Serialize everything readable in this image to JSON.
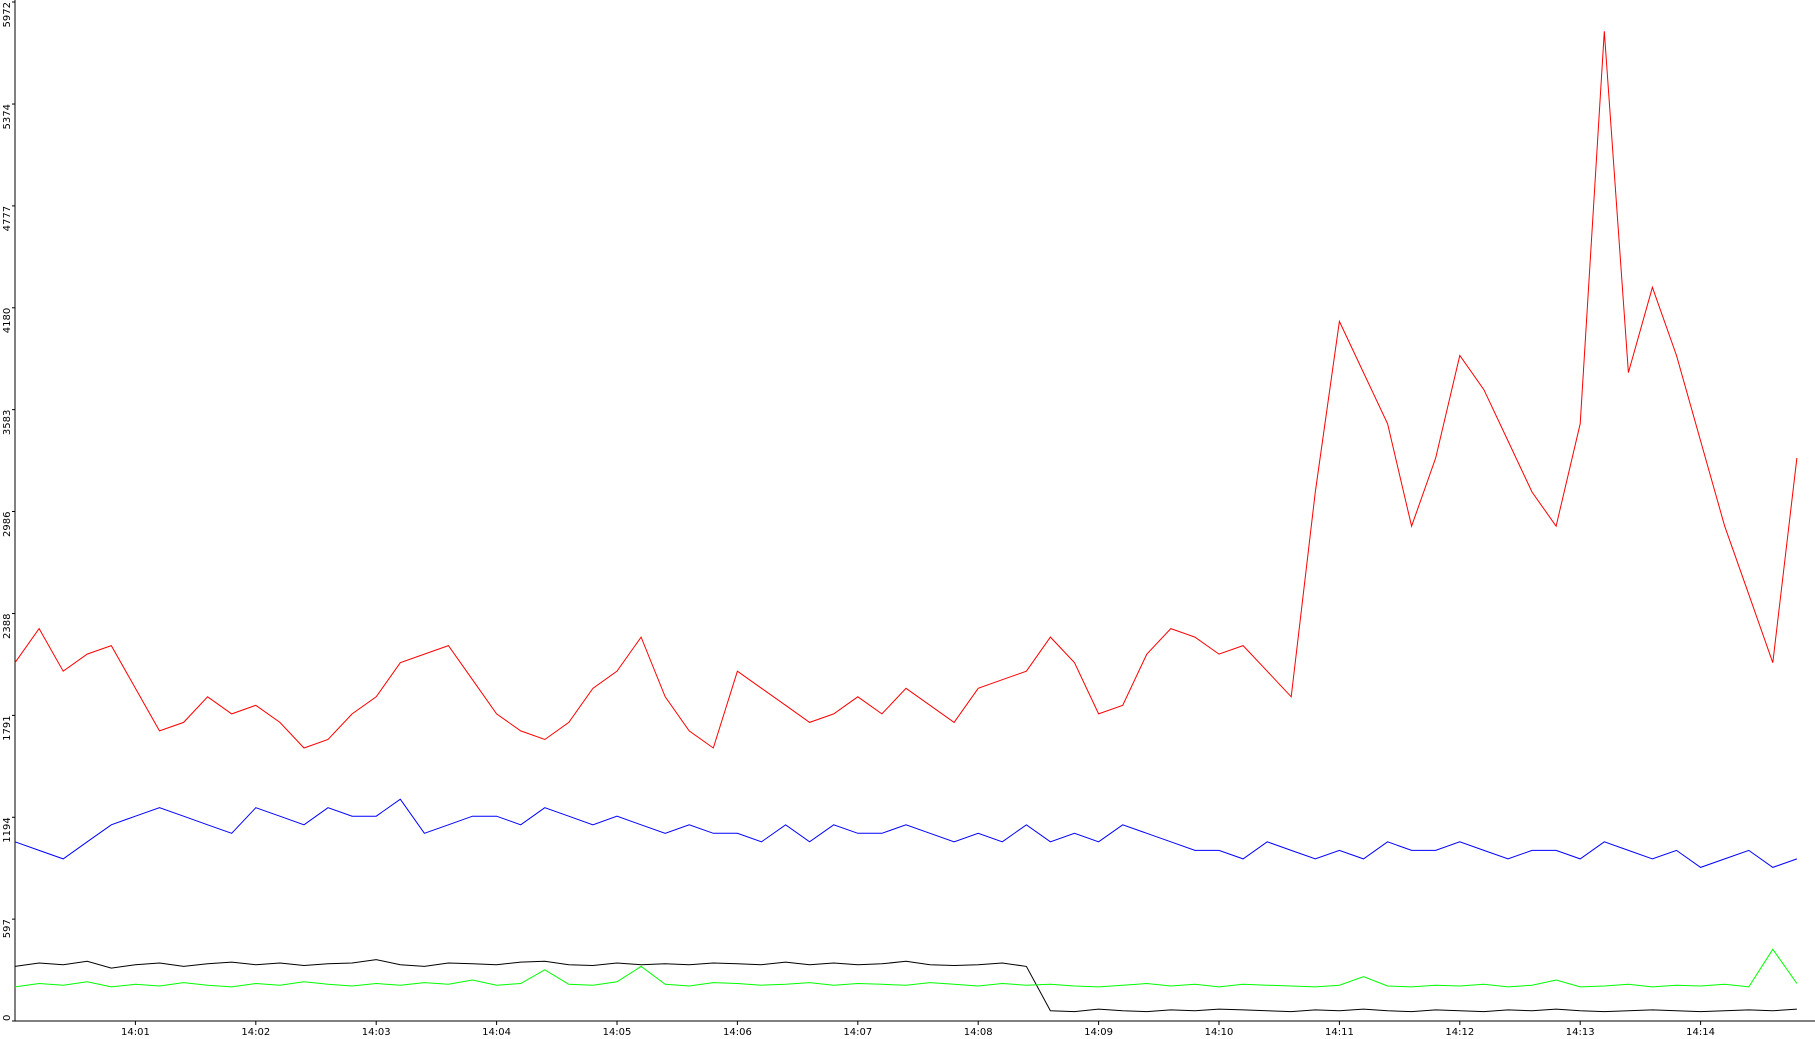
{
  "chart_data": {
    "type": "line",
    "categories": [
      null,
      null,
      null,
      null,
      null,
      "14:01",
      null,
      null,
      null,
      null,
      "14:02",
      null,
      null,
      null,
      null,
      "14:03",
      null,
      null,
      null,
      null,
      "14:04",
      null,
      null,
      null,
      null,
      "14:05",
      null,
      null,
      null,
      null,
      "14:06",
      null,
      null,
      null,
      null,
      "14:07",
      null,
      null,
      null,
      null,
      "14:08",
      null,
      null,
      null,
      null,
      "14:09",
      null,
      null,
      null,
      null,
      "14:10",
      null,
      null,
      null,
      null,
      "14:11",
      null,
      null,
      null,
      null,
      "14:12",
      null,
      null,
      null,
      null,
      "14:13",
      null,
      null,
      null,
      null,
      "14:14",
      null,
      null,
      null,
      null
    ],
    "ylim": [
      0,
      5972
    ],
    "yticks": [
      0,
      597,
      1194,
      1791,
      2388,
      2986,
      3583,
      4180,
      4777,
      5374,
      5972
    ],
    "series": [
      {
        "color": "#ff0000",
        "values": [
          2100,
          2300,
          2050,
          2150,
          2200,
          1950,
          1700,
          1750,
          1900,
          1800,
          1850,
          1750,
          1600,
          1650,
          1800,
          1900,
          2100,
          2150,
          2200,
          2000,
          1800,
          1700,
          1650,
          1750,
          1950,
          2050,
          2250,
          1900,
          1700,
          1600,
          2050,
          1950,
          1850,
          1750,
          1800,
          1900,
          1800,
          1950,
          1850,
          1750,
          1950,
          2000,
          2050,
          2250,
          2100,
          1800,
          1850,
          2150,
          2300,
          2250,
          2150,
          2200,
          2050,
          1900,
          3100,
          4100,
          3800,
          3500,
          2900,
          3300,
          3900,
          3700,
          3400,
          3100,
          2900,
          3500,
          5800,
          3800,
          4300,
          3900,
          3400,
          2900,
          2500,
          2100,
          3300
        ]
      },
      {
        "color": "#0000ff",
        "values": [
          1050,
          1000,
          950,
          1050,
          1150,
          1200,
          1250,
          1200,
          1150,
          1100,
          1250,
          1200,
          1150,
          1250,
          1200,
          1200,
          1300,
          1100,
          1150,
          1200,
          1200,
          1150,
          1250,
          1200,
          1150,
          1200,
          1150,
          1100,
          1150,
          1100,
          1100,
          1050,
          1150,
          1050,
          1150,
          1100,
          1100,
          1150,
          1100,
          1050,
          1100,
          1050,
          1150,
          1050,
          1100,
          1050,
          1150,
          1100,
          1050,
          1000,
          1000,
          950,
          1050,
          1000,
          950,
          1000,
          950,
          1050,
          1000,
          1000,
          1050,
          1000,
          950,
          1000,
          1000,
          950,
          1050,
          1000,
          950,
          1000,
          900,
          950,
          1000,
          900,
          950
        ]
      },
      {
        "color": "#000000",
        "values": [
          320,
          340,
          330,
          350,
          310,
          330,
          340,
          320,
          335,
          345,
          330,
          340,
          325,
          335,
          340,
          360,
          330,
          320,
          340,
          335,
          330,
          345,
          350,
          330,
          325,
          340,
          330,
          335,
          330,
          340,
          335,
          330,
          345,
          330,
          340,
          330,
          335,
          350,
          330,
          325,
          330,
          340,
          320,
          60,
          55,
          70,
          60,
          55,
          65,
          60,
          70,
          65,
          60,
          55,
          65,
          60,
          70,
          60,
          55,
          65,
          60,
          55,
          65,
          60,
          70,
          60,
          55,
          60,
          65,
          60,
          55,
          60,
          65,
          60,
          70
        ]
      },
      {
        "color": "#00ff00",
        "values": [
          200,
          220,
          210,
          230,
          200,
          215,
          205,
          225,
          210,
          200,
          220,
          210,
          230,
          215,
          205,
          220,
          210,
          225,
          215,
          240,
          210,
          220,
          300,
          215,
          210,
          230,
          320,
          215,
          205,
          225,
          220,
          210,
          215,
          225,
          210,
          220,
          215,
          210,
          225,
          215,
          205,
          220,
          210,
          215,
          205,
          200,
          210,
          220,
          205,
          215,
          200,
          215,
          210,
          205,
          200,
          210,
          260,
          205,
          200,
          210,
          205,
          215,
          200,
          210,
          240,
          200,
          205,
          215,
          200,
          210,
          205,
          215,
          200,
          420,
          220
        ]
      }
    ]
  }
}
